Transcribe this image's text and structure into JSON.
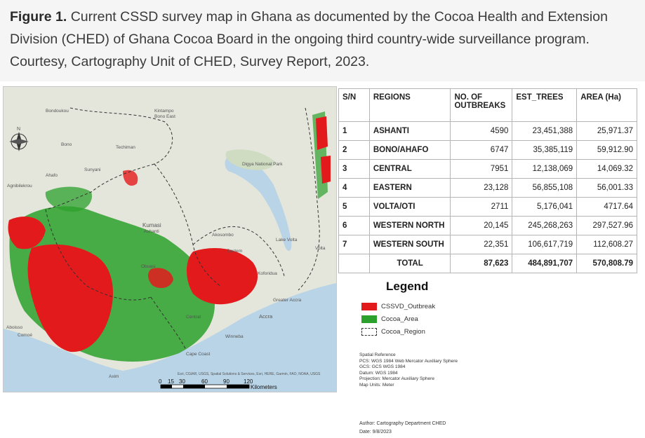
{
  "caption": {
    "label": "Figure 1.",
    "text": "Current CSSD survey map in Ghana as documented by the Cocoa Health and Extension Division (CHED) of Ghana Cocoa Board in the ongoing third country-wide surveillance program. Courtesy, Cartography Unit of CHED, Survey Report, 2023."
  },
  "map": {
    "place_labels": [
      "Bondoukou",
      "Kintampo",
      "Bono East",
      "Bono",
      "Techiman",
      "Sunyani",
      "Ahafo",
      "Agnibilekrou",
      "Digya National Park",
      "Kumasi",
      "Ashanti",
      "Akosombo",
      "Obuasi",
      "Koforidua",
      "Eastern",
      "Greater Accra",
      "Accra",
      "Aboisso",
      "Central",
      "Cape Coast",
      "Axim",
      "Winneba",
      "Volta",
      "Lake Volta",
      "Comoé"
    ],
    "attribution": "Esri, CGIAR, USGS, Spatial Solutions & Services, Esri, HERE, Garmin, FAO, NOAA, USGS",
    "scale_ticks": [
      "0",
      "15",
      "30",
      "60",
      "90",
      "120"
    ],
    "scale_unit": "Kilometers",
    "north_label": "N"
  },
  "table": {
    "headers": [
      "S/N",
      "REGIONS",
      "NO. OF OUTBREAKS",
      "EST_TREES",
      "AREA (Ha)"
    ],
    "rows": [
      {
        "sn": "1",
        "region": "ASHANTI",
        "outbreaks": "4590",
        "trees": "23,451,388",
        "area": "25,971.37"
      },
      {
        "sn": "2",
        "region": "BONO/AHAFO",
        "outbreaks": "6747",
        "trees": "35,385,119",
        "area": "59,912.90"
      },
      {
        "sn": "3",
        "region": "CENTRAL",
        "outbreaks": "7951",
        "trees": "12,138,069",
        "area": "14,069.32"
      },
      {
        "sn": "4",
        "region": "EASTERN",
        "outbreaks": "23,128",
        "trees": "56,855,108",
        "area": "56,001.33"
      },
      {
        "sn": "5",
        "region": "VOLTA/OTI",
        "outbreaks": "2711",
        "trees": "5,176,041",
        "area": "4717.64"
      },
      {
        "sn": "6",
        "region": "WESTERN NORTH",
        "outbreaks": "20,145",
        "trees": "245,268,263",
        "area": "297,527.96"
      },
      {
        "sn": "7",
        "region": "WESTERN SOUTH",
        "outbreaks": "22,351",
        "trees": "106,617,719",
        "area": "112,608.27"
      }
    ],
    "total": {
      "label": "TOTAL",
      "outbreaks": "87,623",
      "trees": "484,891,707",
      "area": "570,808.79"
    }
  },
  "legend": {
    "title": "Legend",
    "items": [
      {
        "label": "CSSVD_Outbreak",
        "color": "#e31a1c"
      },
      {
        "label": "Cocoa_Area",
        "color": "#2ca02c"
      },
      {
        "label": "Cocoa_Region",
        "color": "dashed"
      }
    ],
    "spatial_reference": [
      "Spatial Reference",
      "PCS: WGS 1984 Web Mercator Auxiliary Sphere",
      "GCS: GCS WGS 1984",
      "Datum: WGS 1984",
      "Projection: Mercator Auxiliary Sphere",
      "Map Units: Meter"
    ],
    "author": "Author: Cartography Department CHED",
    "date": "Date: 9/8/2023"
  }
}
